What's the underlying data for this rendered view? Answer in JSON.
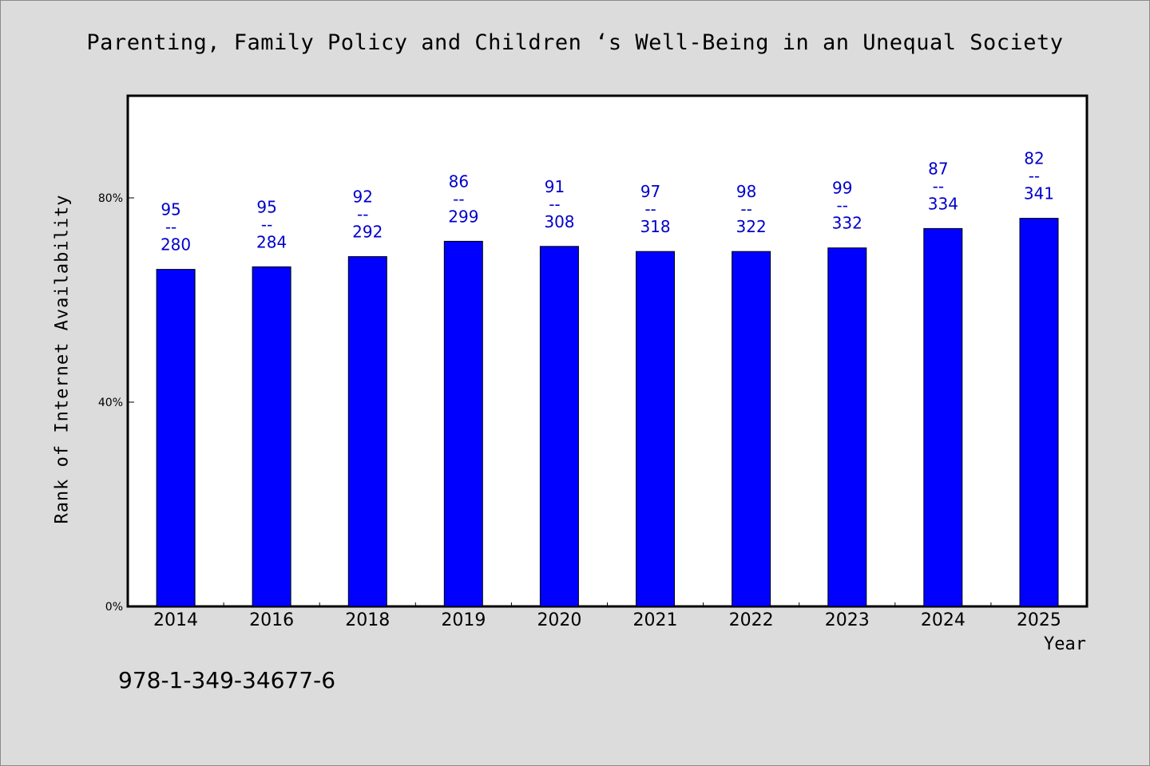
{
  "chart_data": {
    "type": "bar",
    "title": "Parenting, Family Policy and Children ‘s Well-Being in an Unequal Society",
    "xlabel": "Year",
    "ylabel": "Rank of Internet Availability",
    "categories": [
      "2014",
      "2016",
      "2018",
      "2019",
      "2020",
      "2021",
      "2022",
      "2023",
      "2024",
      "2025"
    ],
    "values": [
      66,
      66.5,
      68.5,
      71.5,
      70.5,
      69.5,
      69.5,
      70.2,
      74,
      76
    ],
    "data_labels_top": [
      "95",
      "95",
      "92",
      "86",
      "91",
      "97",
      "98",
      "99",
      "87",
      "82"
    ],
    "data_labels_separator": "--",
    "data_labels_bottom": [
      "280",
      "284",
      "292",
      "299",
      "308",
      "318",
      "322",
      "332",
      "334",
      "341"
    ],
    "yticks": [
      0,
      40,
      80
    ],
    "ytick_labels": [
      "0%",
      "40%",
      "80%"
    ],
    "ylim": [
      0,
      100
    ],
    "grid": false,
    "legend": "none",
    "bar_color": "#0000ff",
    "label_color": "#0000cc",
    "background": "#dcdcdc",
    "plot_background": "#ffffff"
  },
  "footer": {
    "isbn": "978-1-349-34677-6"
  }
}
